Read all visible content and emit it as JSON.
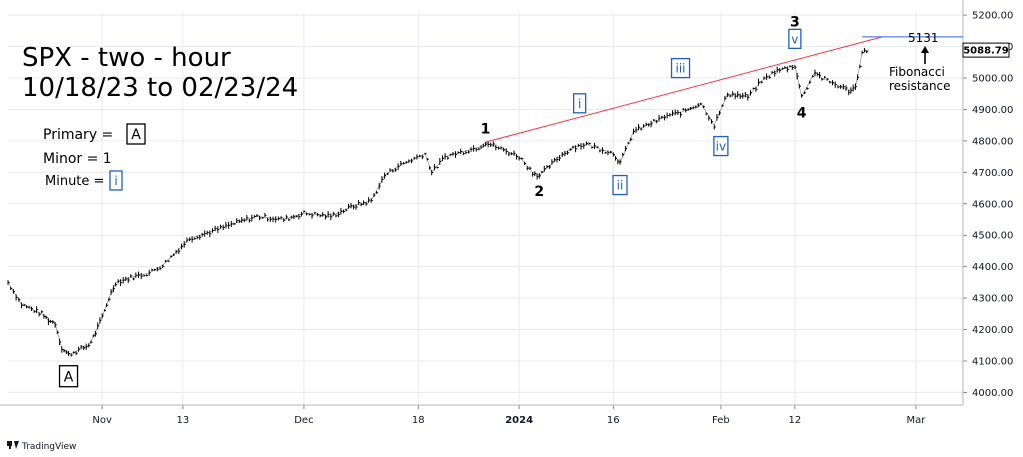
{
  "chart_data": {
    "type": "line",
    "title": "SPX - two - hour",
    "subtitle": "10/18/23 to 02/23/24",
    "ylim": [
      3960,
      5210
    ],
    "y_ticks": [
      "4000.00",
      "4100.00",
      "4200.00",
      "4300.00",
      "4400.00",
      "4500.00",
      "4600.00",
      "4700.00",
      "4800.00",
      "4900.00",
      "5000.00",
      "5100.00",
      "5200.00"
    ],
    "x_ticks": [
      {
        "label": "Nov",
        "date": "2023-11-01",
        "bold": false
      },
      {
        "label": "13",
        "date": "2023-11-13",
        "bold": false
      },
      {
        "label": "Dec",
        "date": "2023-12-01",
        "bold": false
      },
      {
        "label": "18",
        "date": "2023-12-18",
        "bold": false
      },
      {
        "label": "2024",
        "date": "2024-01-02",
        "bold": true
      },
      {
        "label": "16",
        "date": "2024-01-16",
        "bold": false
      },
      {
        "label": "Feb",
        "date": "2024-02-01",
        "bold": false
      },
      {
        "label": "12",
        "date": "2024-02-12",
        "bold": false
      },
      {
        "label": "Mar",
        "date": "2024-03-01",
        "bold": false
      }
    ],
    "x_range": [
      "2023-10-18",
      "2024-03-08"
    ],
    "last_price": "5088.79",
    "target": {
      "label": "5131",
      "value": 5131
    },
    "target_note": [
      "Fibonacci",
      "resistance"
    ],
    "series": [
      {
        "values": [
          {
            "x": "2023-10-18",
            "y": 4350
          },
          {
            "x": "2023-10-20",
            "y": 4280
          },
          {
            "x": "2023-10-23",
            "y": 4250
          },
          {
            "x": "2023-10-24",
            "y": 4230
          },
          {
            "x": "2023-10-25",
            "y": 4220
          },
          {
            "x": "2023-10-26",
            "y": 4140
          },
          {
            "x": "2023-10-27",
            "y": 4120
          },
          {
            "x": "2023-10-30",
            "y": 4150
          },
          {
            "x": "2023-10-31",
            "y": 4190
          },
          {
            "x": "2023-11-01",
            "y": 4240
          },
          {
            "x": "2023-11-02",
            "y": 4300
          },
          {
            "x": "2023-11-03",
            "y": 4350
          },
          {
            "x": "2023-11-06",
            "y": 4370
          },
          {
            "x": "2023-11-08",
            "y": 4380
          },
          {
            "x": "2023-11-10",
            "y": 4405
          },
          {
            "x": "2023-11-14",
            "y": 4490
          },
          {
            "x": "2023-11-17",
            "y": 4510
          },
          {
            "x": "2023-11-21",
            "y": 4540
          },
          {
            "x": "2023-11-24",
            "y": 4560
          },
          {
            "x": "2023-11-28",
            "y": 4550
          },
          {
            "x": "2023-12-01",
            "y": 4570
          },
          {
            "x": "2023-12-05",
            "y": 4560
          },
          {
            "x": "2023-12-08",
            "y": 4590
          },
          {
            "x": "2023-12-11",
            "y": 4610
          },
          {
            "x": "2023-12-13",
            "y": 4690
          },
          {
            "x": "2023-12-15",
            "y": 4720
          },
          {
            "x": "2023-12-19",
            "y": 4760
          },
          {
            "x": "2023-12-20",
            "y": 4700
          },
          {
            "x": "2023-12-22",
            "y": 4750
          },
          {
            "x": "2023-12-27",
            "y": 4780
          },
          {
            "x": "2023-12-28",
            "y": 4795
          },
          {
            "x": "2024-01-02",
            "y": 4750
          },
          {
            "x": "2024-01-04",
            "y": 4700
          },
          {
            "x": "2024-01-05",
            "y": 4690
          },
          {
            "x": "2024-01-08",
            "y": 4750
          },
          {
            "x": "2024-01-10",
            "y": 4780
          },
          {
            "x": "2024-01-12",
            "y": 4790
          },
          {
            "x": "2024-01-16",
            "y": 4760
          },
          {
            "x": "2024-01-17",
            "y": 4730
          },
          {
            "x": "2024-01-19",
            "y": 4830
          },
          {
            "x": "2024-01-22",
            "y": 4860
          },
          {
            "x": "2024-01-24",
            "y": 4880
          },
          {
            "x": "2024-01-26",
            "y": 4890
          },
          {
            "x": "2024-01-29",
            "y": 4920
          },
          {
            "x": "2024-01-31",
            "y": 4850
          },
          {
            "x": "2024-02-02",
            "y": 4950
          },
          {
            "x": "2024-02-05",
            "y": 4940
          },
          {
            "x": "2024-02-07",
            "y": 4990
          },
          {
            "x": "2024-02-09",
            "y": 5020
          },
          {
            "x": "2024-02-12",
            "y": 5040
          },
          {
            "x": "2024-02-13",
            "y": 4940
          },
          {
            "x": "2024-02-15",
            "y": 5020
          },
          {
            "x": "2024-02-16",
            "y": 5000
          },
          {
            "x": "2024-02-20",
            "y": 4960
          },
          {
            "x": "2024-02-21",
            "y": 4970
          },
          {
            "x": "2024-02-22",
            "y": 5080
          },
          {
            "x": "2024-02-23",
            "y": 5090
          }
        ]
      }
    ],
    "trendline": [
      {
        "x": "2023-12-28",
        "y": 4796
      },
      {
        "x": "2024-02-23",
        "y": 5131
      }
    ],
    "wave_labels": [
      {
        "text": "A",
        "kind": "primary",
        "x": "2023-10-27",
        "y": 4050
      },
      {
        "text": "1",
        "kind": "minor",
        "x": "2023-12-28",
        "y": 4840
      },
      {
        "text": "2",
        "kind": "minor",
        "x": "2024-01-05",
        "y": 4640
      },
      {
        "text": "3",
        "kind": "minor",
        "x": "2024-02-12",
        "y": 5180
      },
      {
        "text": "4",
        "kind": "minor",
        "x": "2024-02-13",
        "y": 4890
      },
      {
        "text": "i",
        "kind": "minute",
        "x": "2024-01-11",
        "y": 4918
      },
      {
        "text": "ii",
        "kind": "minute",
        "x": "2024-01-17",
        "y": 4658
      },
      {
        "text": "iii",
        "kind": "minute",
        "x": "2024-01-26",
        "y": 5030
      },
      {
        "text": "iv",
        "kind": "minute",
        "x": "2024-02-01",
        "y": 4782
      },
      {
        "text": "v",
        "kind": "minute",
        "x": "2024-02-12",
        "y": 5123
      }
    ]
  },
  "legend": {
    "primary_label": "Primary = ",
    "primary_symbol": "A",
    "minor_label": "Minor = 1",
    "minute_label": "Minute = ",
    "minute_symbol": "i"
  },
  "branding": {
    "text": "TradingView",
    "icon": "tradingview-logo-icon"
  },
  "colors": {
    "price": "#000000",
    "trendline": "#f23645",
    "target_line": "#2962ff",
    "minute_box": "#1f5fbf",
    "grid": "#e8eaee"
  }
}
